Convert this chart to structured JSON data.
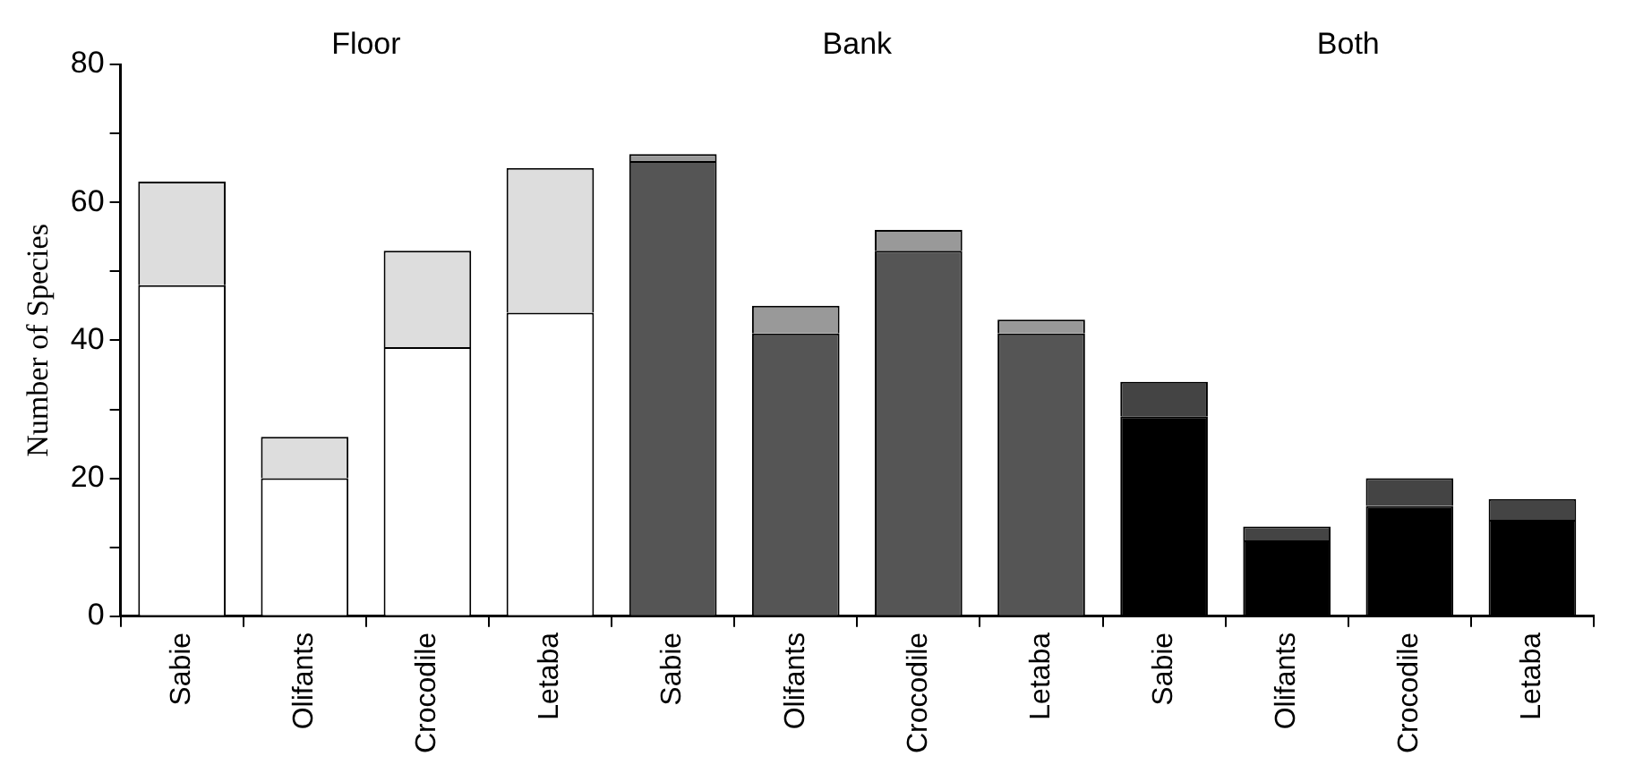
{
  "chart_data": {
    "type": "bar",
    "stacked": true,
    "ylabel": "Number of Species",
    "categories": [
      "Sabie",
      "Olifants",
      "Crocodile",
      "Letaba",
      "Sabie",
      "Olifants",
      "Crocodile",
      "Letaba",
      "Sabie",
      "Olifants",
      "Crocodile",
      "Letaba"
    ],
    "series": [
      {
        "colors": [
          "#ffffff",
          "#ffffff",
          "#ffffff",
          "#ffffff",
          "#555555",
          "#555555",
          "#555555",
          "#555555",
          "#000000",
          "#000000",
          "#000000",
          "#000000"
        ],
        "values": [
          48,
          20,
          39,
          44,
          66,
          41,
          53,
          41,
          29,
          11,
          16,
          14
        ]
      },
      {
        "colors": [
          "#dddddd",
          "#dddddd",
          "#dddddd",
          "#dddddd",
          "#999999",
          "#999999",
          "#999999",
          "#999999",
          "#444444",
          "#444444",
          "#444444",
          "#444444"
        ],
        "values": [
          15,
          6,
          14,
          21,
          1,
          4,
          3,
          2,
          5,
          2,
          4,
          3
        ]
      }
    ],
    "annotations": [
      "Floor",
      "Bank",
      "Both"
    ],
    "ylim": [
      0,
      80
    ],
    "yticks": [
      0,
      {
        "value": 10,
        "label": null
      },
      20,
      {
        "value": 30,
        "label": null
      },
      40,
      {
        "value": 50,
        "label": null
      },
      60,
      {
        "value": 70,
        "label": null
      },
      80
    ],
    "grid": false,
    "legend": false
  }
}
